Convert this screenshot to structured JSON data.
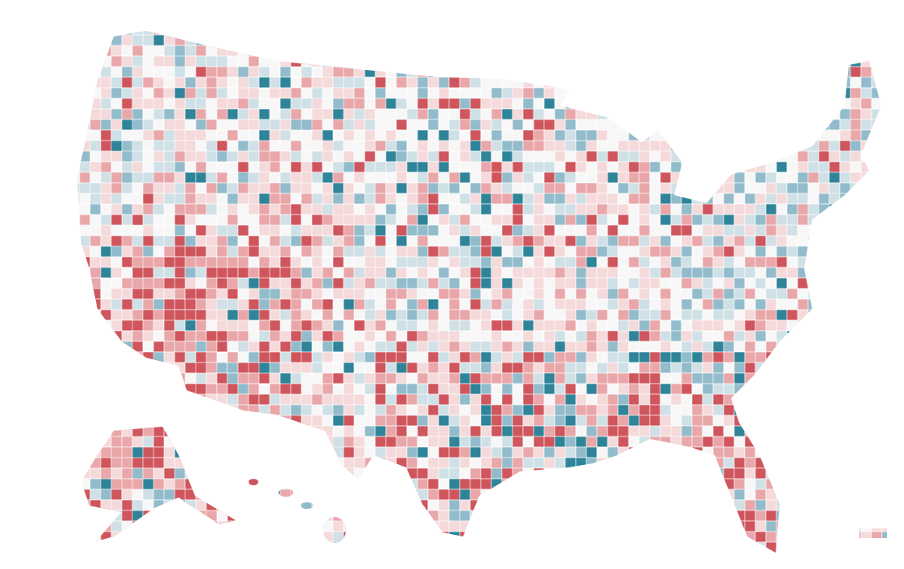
{
  "map": {
    "type": "choropleth",
    "palette": [
      "#f7f7f7",
      "#cfe0e6",
      "#92bccb",
      "#2f8499",
      "#f5dadb",
      "#e9a7aa",
      "#cf565d"
    ]
  }
}
